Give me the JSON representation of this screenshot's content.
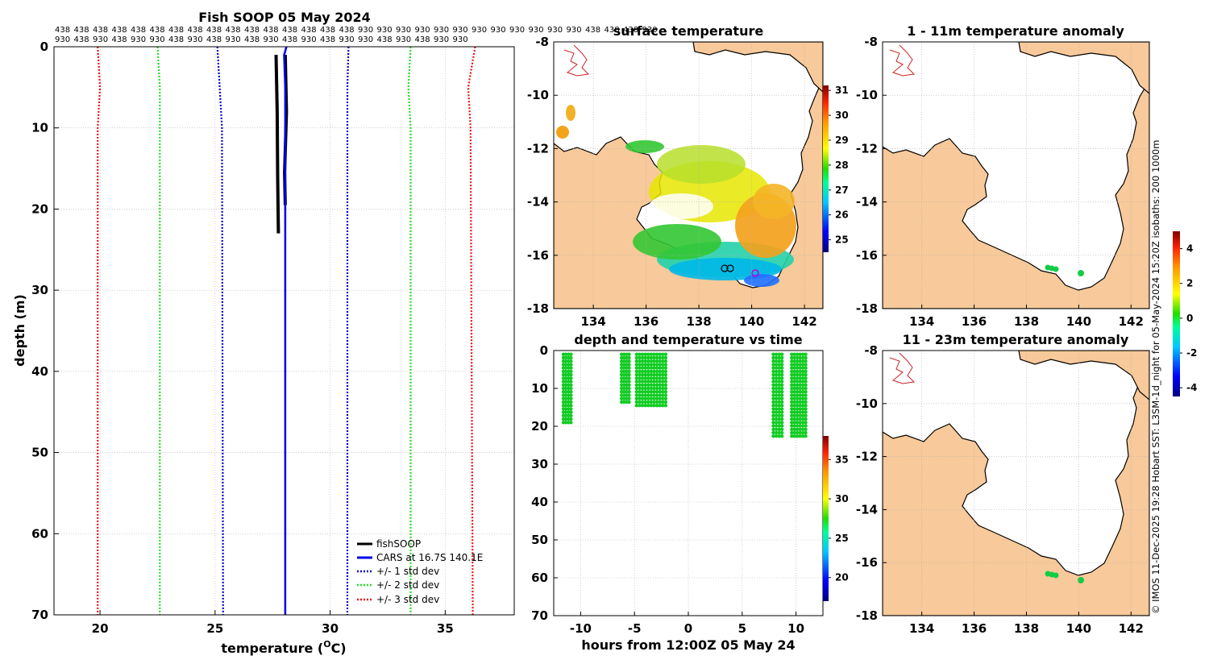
{
  "colors": {
    "land": "#f8c99a",
    "grid": "#b0b0b0",
    "fish": "#000000",
    "cars": "#0000ee",
    "std1": "#0000cc",
    "std2": "#22dd22",
    "std3": "#ee1111",
    "points": "#11cc22"
  },
  "chart_data": [
    {
      "type": "line",
      "title": "Fish SOOP 05 May 2024",
      "xlabel": "temperature (",
      "xlabel_unit": "O",
      "xlabel_tail": "C)",
      "ylabel": "depth (m)",
      "xlim": [
        18,
        38
      ],
      "ylim": [
        0,
        70
      ],
      "xticks": [
        20,
        25,
        30,
        35
      ],
      "yticks": [
        0,
        10,
        20,
        30,
        40,
        50,
        60,
        70
      ],
      "top_labels_row1": [
        "438",
        "438",
        "438",
        "438",
        "438",
        "438",
        "438",
        "438",
        "438",
        "438",
        "438",
        "438",
        "438",
        "438",
        "438",
        "438",
        "930",
        "930",
        "930",
        "930",
        "930",
        "930",
        "930",
        "930",
        "930",
        "930",
        "930",
        "930",
        "438",
        "438",
        "438",
        "930"
      ],
      "top_labels_row2": [
        "930",
        "438",
        "930",
        "438",
        "930",
        "930",
        "438",
        "930",
        "438",
        "930",
        "438",
        "930",
        "438",
        "930",
        "438",
        "930",
        "930",
        "438",
        "930",
        "438",
        "930",
        "930"
      ],
      "series": [
        {
          "name": "fishSOOP",
          "style": "solid",
          "color_key": "fish",
          "points": [
            [
              27.65,
              1
            ],
            [
              27.7,
              8
            ],
            [
              27.72,
              16
            ],
            [
              27.75,
              23
            ]
          ]
        },
        {
          "name": "fishSOOP",
          "style": "solid",
          "color_key": "fish",
          "points": [
            [
              28.05,
              1
            ],
            [
              28.1,
              8
            ],
            [
              28.02,
              15.5
            ],
            [
              28.05,
              19.5
            ]
          ]
        },
        {
          "name": "CARS at 16.7S 140.1E",
          "style": "solid",
          "color_key": "cars",
          "points": [
            [
              28.1,
              0
            ],
            [
              28.0,
              1
            ],
            [
              28.05,
              5
            ],
            [
              28.05,
              70
            ]
          ]
        },
        {
          "name": "+/- 1 std dev",
          "style": "dotted",
          "color_key": "std1",
          "points": [
            [
              25.1,
              0
            ],
            [
              25.2,
              5
            ],
            [
              25.3,
              10
            ],
            [
              25.35,
              70
            ]
          ]
        },
        {
          "name": "+/- 1 std dev",
          "style": "dotted",
          "color_key": "std1",
          "points": [
            [
              30.8,
              0
            ],
            [
              30.75,
              5
            ],
            [
              30.75,
              10
            ],
            [
              30.75,
              70
            ]
          ]
        },
        {
          "name": "+/- 2 std dev",
          "style": "dotted",
          "color_key": "std2",
          "points": [
            [
              22.5,
              0
            ],
            [
              22.6,
              5
            ],
            [
              22.6,
              10
            ],
            [
              22.6,
              70
            ]
          ]
        },
        {
          "name": "+/- 2 std dev",
          "style": "dotted",
          "color_key": "std2",
          "points": [
            [
              33.5,
              0
            ],
            [
              33.4,
              5
            ],
            [
              33.5,
              10
            ],
            [
              33.5,
              70
            ]
          ]
        },
        {
          "name": "+/- 3 std dev",
          "style": "dotted",
          "color_key": "std3",
          "points": [
            [
              19.9,
              0
            ],
            [
              20.0,
              5
            ],
            [
              19.9,
              10
            ],
            [
              19.9,
              70
            ]
          ]
        },
        {
          "name": "+/- 3 std dev",
          "style": "dotted",
          "color_key": "std3",
          "points": [
            [
              36.3,
              0
            ],
            [
              36.0,
              5
            ],
            [
              36.1,
              10
            ],
            [
              36.2,
              70
            ]
          ]
        }
      ],
      "legend": [
        "fishSOOP",
        "CARS at 16.7S 140.1E",
        "+/- 1 std dev",
        "+/- 2 std dev",
        "+/- 3 std dev"
      ],
      "legend_position": "bottom-right"
    },
    {
      "type": "heatmap",
      "title": "surface temperature",
      "xlim": [
        132.5,
        142.7
      ],
      "ylim": [
        -18,
        -8
      ],
      "xticks": [
        134,
        136,
        138,
        140,
        142
      ],
      "yticks": [
        -8,
        -10,
        -12,
        -14,
        -16,
        -18
      ],
      "colorbar_ticks": [
        25,
        26,
        27,
        28,
        29,
        30,
        31
      ],
      "colorbar_range": [
        24.5,
        31.2
      ]
    },
    {
      "type": "heatmap",
      "title": "1 - 11m temperature anomaly",
      "xlim": [
        132.5,
        142.7
      ],
      "ylim": [
        -18,
        -8
      ],
      "xticks": [
        134,
        136,
        138,
        140,
        142
      ],
      "yticks": [
        -8,
        -10,
        -12,
        -14,
        -16,
        -18
      ],
      "colorbar_ticks": [
        -4,
        -2,
        0,
        2,
        4
      ],
      "colorbar_range": [
        -4.5,
        5
      ]
    },
    {
      "type": "scatter",
      "title": "depth and temperature vs time",
      "xlabel": "hours from 12:00Z 05 May 24",
      "xlim": [
        -12.5,
        12.5
      ],
      "ylim": [
        0,
        70
      ],
      "xticks": [
        -10,
        -5,
        0,
        5,
        10
      ],
      "yticks": [
        0,
        10,
        20,
        30,
        40,
        50,
        60,
        70
      ],
      "colorbar_ticks": [
        20,
        25,
        30,
        35
      ],
      "colorbar_range": [
        17,
        38
      ],
      "casts": [
        {
          "t0": -11.6,
          "t1": -10.9,
          "dmax": 19.5
        },
        {
          "t0": -6.2,
          "t1": -5.5,
          "dmax": 14
        },
        {
          "t0": -4.8,
          "t1": -2.1,
          "dmax": 15
        },
        {
          "t0": 7.9,
          "t1": 8.7,
          "dmax": 23
        },
        {
          "t0": 9.6,
          "t1": 10.9,
          "dmax": 23
        }
      ]
    },
    {
      "type": "heatmap",
      "title": "11 - 23m temperature anomaly",
      "xlim": [
        132.5,
        142.7
      ],
      "ylim": [
        -18,
        -8
      ],
      "xticks": [
        134,
        136,
        138,
        140,
        142
      ],
      "yticks": [
        -8,
        -10,
        -12,
        -14,
        -16,
        -18
      ]
    }
  ],
  "credit": "© IMOS 11-Dec-2025 19:28 Hobart SST: L3SM-1d_night for 05-May-2024 15:20Z  isobaths: 200  1000m"
}
